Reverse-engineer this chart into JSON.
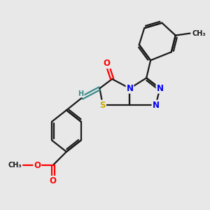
{
  "bg_color": "#e8e8e8",
  "bond_color": "#1a1a1a",
  "bond_width": 1.6,
  "atom_colors": {
    "N": "#0000ee",
    "O": "#ff0000",
    "S": "#ccaa00",
    "H": "#3a8a8a",
    "C": "#1a1a1a"
  },
  "font_size_atom": 8.5,
  "font_size_small": 7.0,
  "figsize": [
    3.0,
    3.0
  ],
  "dpi": 100,
  "xlim": [
    0,
    10
  ],
  "ylim": [
    0,
    10
  ]
}
